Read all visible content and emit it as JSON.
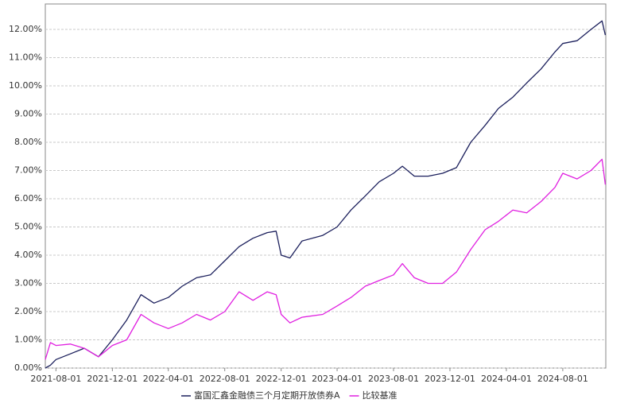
{
  "chart_data": {
    "type": "line",
    "x": [
      "2021-07-09",
      "2021-07-20",
      "2021-08-01",
      "2021-09-01",
      "2021-10-01",
      "2021-11-01",
      "2021-12-01",
      "2022-01-01",
      "2022-02-01",
      "2022-03-01",
      "2022-04-01",
      "2022-05-01",
      "2022-06-01",
      "2022-07-01",
      "2022-08-01",
      "2022-09-01",
      "2022-10-01",
      "2022-11-01",
      "2022-11-20",
      "2022-12-01",
      "2022-12-20",
      "2023-01-15",
      "2023-03-01",
      "2023-04-01",
      "2023-05-01",
      "2023-06-01",
      "2023-07-01",
      "2023-08-01",
      "2023-08-20",
      "2023-09-15",
      "2023-10-15",
      "2023-11-15",
      "2023-12-15",
      "2024-01-15",
      "2024-02-15",
      "2024-03-15",
      "2024-04-15",
      "2024-05-15",
      "2024-06-15",
      "2024-07-15",
      "2024-08-01",
      "2024-09-01",
      "2024-10-01",
      "2024-10-25",
      "2024-11-01"
    ],
    "series": [
      {
        "name": "富国汇鑫金融债三个月定期开放债券A",
        "color": "#1b1f5c",
        "values": [
          0,
          0.1,
          0.3,
          0.5,
          0.7,
          0.4,
          1.0,
          1.7,
          2.6,
          2.3,
          2.5,
          2.9,
          3.2,
          3.3,
          3.8,
          4.3,
          4.6,
          4.8,
          4.85,
          4.0,
          3.9,
          4.5,
          4.7,
          5.0,
          5.6,
          6.1,
          6.6,
          6.9,
          7.15,
          6.8,
          6.8,
          6.9,
          7.1,
          8.0,
          8.6,
          9.2,
          9.6,
          10.1,
          10.6,
          11.2,
          11.5,
          11.6,
          12.0,
          12.3,
          11.8
        ]
      },
      {
        "name": "比较基准",
        "color": "#e020e0",
        "values": [
          0.3,
          0.9,
          0.8,
          0.85,
          0.7,
          0.4,
          0.8,
          1.0,
          1.9,
          1.6,
          1.4,
          1.6,
          1.9,
          1.7,
          2.0,
          2.7,
          2.4,
          2.7,
          2.6,
          1.9,
          1.6,
          1.8,
          1.9,
          2.2,
          2.5,
          2.9,
          3.1,
          3.3,
          3.7,
          3.2,
          3.0,
          3.0,
          3.4,
          4.2,
          4.9,
          5.2,
          5.6,
          5.5,
          5.9,
          6.4,
          6.9,
          6.7,
          7.0,
          7.4,
          6.5
        ]
      }
    ],
    "xlim": [
      "2021-07-09",
      "2024-11-02"
    ],
    "xticks": [
      "2021-08-01",
      "2021-12-01",
      "2022-04-01",
      "2022-08-01",
      "2022-12-01",
      "2023-04-01",
      "2023-08-01",
      "2023-12-01",
      "2024-04-01",
      "2024-08-01"
    ],
    "ylim": [
      0,
      12.9
    ],
    "yticks": [
      {
        "value": 0,
        "label": "0.00%"
      },
      {
        "value": 1,
        "label": "1.00%"
      },
      {
        "value": 2,
        "label": "2.00%"
      },
      {
        "value": 3,
        "label": "3.00%"
      },
      {
        "value": 4,
        "label": "4.00%"
      },
      {
        "value": 5,
        "label": "5.00%"
      },
      {
        "value": 6,
        "label": "6.00%"
      },
      {
        "value": 7,
        "label": "7.00%"
      },
      {
        "value": 8,
        "label": "8.00%"
      },
      {
        "value": 9,
        "label": "9.00%"
      },
      {
        "value": 10,
        "label": "10.00%"
      },
      {
        "value": 11,
        "label": "11.00%"
      },
      {
        "value": 12,
        "label": "12.00%"
      }
    ],
    "grid": true
  }
}
